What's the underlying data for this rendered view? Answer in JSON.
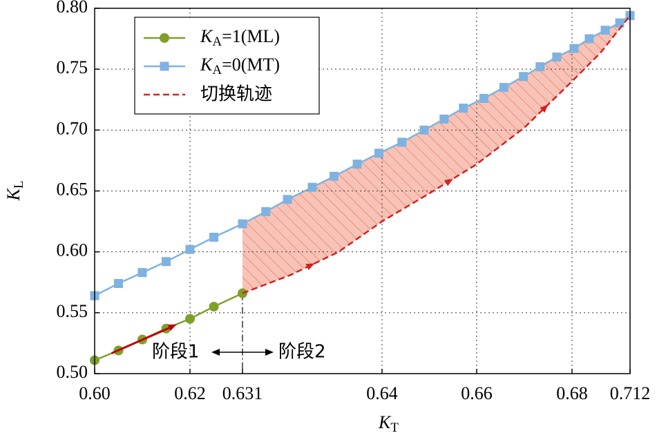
{
  "chart_data": {
    "type": "line",
    "x_label": "KT",
    "y_label": "KL",
    "xlim": [
      0.6,
      0.712
    ],
    "xticks": [
      {
        "value": 0.6,
        "label": "0.60"
      },
      0.62,
      0.631,
      0.64,
      0.66,
      0.68,
      0.712
    ],
    "ylim": [
      0.5,
      0.8
    ],
    "yticks": [
      {
        "value": 0.5,
        "label": "0.50"
      },
      0.55,
      {
        "value": 0.6,
        "label": "0.60"
      },
      0.65,
      {
        "value": 0.7,
        "label": "0.70"
      },
      0.75,
      {
        "value": 0.8,
        "label": "0.80"
      }
    ],
    "grid": true,
    "legend": "upper left",
    "series": [
      {
        "name": "KA=1(ML)",
        "color": "#7f9f2a",
        "marker": "circle",
        "x": [
          0.6,
          0.605,
          0.61,
          0.615,
          0.62,
          0.625,
          0.631
        ],
        "values": [
          0.511,
          0.519,
          0.528,
          0.537,
          0.545,
          0.555,
          0.566
        ]
      },
      {
        "name": "KA=0(MT)",
        "color": "#7fb2e0",
        "marker": "square",
        "x": [
          0.6,
          0.605,
          0.61,
          0.615,
          0.62,
          0.625,
          0.631,
          0.6325,
          0.6339,
          0.6355,
          0.6369,
          0.6384,
          0.6398,
          0.6442,
          0.6489,
          0.6531,
          0.6572,
          0.6615,
          0.6657,
          0.6698,
          0.6733,
          0.6768,
          0.6811,
          0.6895,
          0.6983,
          0.7063,
          0.712
        ],
        "values": [
          0.564,
          0.574,
          0.583,
          0.592,
          0.602,
          0.612,
          0.623,
          0.633,
          0.643,
          0.653,
          0.662,
          0.672,
          0.681,
          0.69,
          0.7,
          0.709,
          0.718,
          0.726,
          0.735,
          0.744,
          0.752,
          0.76,
          0.767,
          0.775,
          0.782,
          0.788,
          0.794
        ]
      },
      {
        "name": "切换轨迹",
        "color": "#d62020",
        "dashed": true,
        "x": [
          0.631,
          0.6341,
          0.6372,
          0.64,
          0.65,
          0.66,
          0.67,
          0.68,
          0.696,
          0.712
        ],
        "values": [
          0.566,
          0.581,
          0.6,
          0.625,
          0.648,
          0.672,
          0.702,
          0.74,
          0.764,
          0.794
        ]
      }
    ],
    "annotations": [
      "阶段1",
      "阶段2"
    ]
  }
}
